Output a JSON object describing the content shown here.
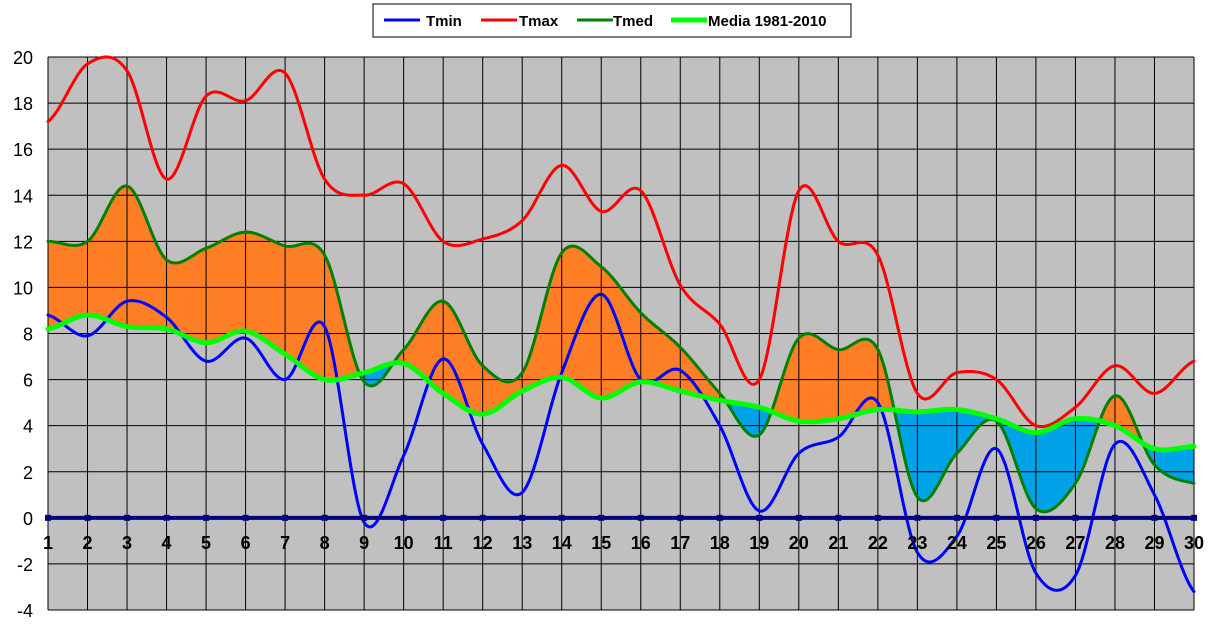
{
  "chart_data": {
    "type": "line",
    "title": "",
    "xlabel": "",
    "ylabel": "",
    "x": [
      1,
      2,
      3,
      4,
      5,
      6,
      7,
      8,
      9,
      10,
      11,
      12,
      13,
      14,
      15,
      16,
      17,
      18,
      19,
      20,
      21,
      22,
      23,
      24,
      25,
      26,
      27,
      28,
      29,
      30
    ],
    "xlim": [
      1,
      30
    ],
    "ylim": [
      -4,
      20
    ],
    "y_ticks": [
      -4,
      -2,
      0,
      2,
      4,
      6,
      8,
      10,
      12,
      14,
      16,
      18,
      20
    ],
    "grid": true,
    "legend_position": "top-center",
    "fill_between": {
      "upper_series": "Tmed",
      "lower_series": "Media 1981-2010",
      "above_color": "#FF7F27",
      "below_color": "#00A2E8"
    },
    "series": [
      {
        "name": "Tmin",
        "color": "#0000FF",
        "values": [
          8.8,
          7.9,
          9.4,
          8.7,
          6.8,
          7.8,
          6.0,
          8.3,
          -0.2,
          2.7,
          6.9,
          3.2,
          1.1,
          6.3,
          9.7,
          6.0,
          6.4,
          4.0,
          0.3,
          2.8,
          3.5,
          5.0,
          -1.5,
          -0.8,
          3.0,
          -2.4,
          -2.5,
          3.2,
          1.0,
          -3.2
        ]
      },
      {
        "name": "Tmax",
        "color": "#FF0000",
        "values": [
          17.2,
          19.7,
          19.4,
          14.7,
          18.3,
          18.1,
          19.3,
          14.7,
          14.0,
          14.5,
          12.0,
          12.1,
          12.9,
          15.3,
          13.3,
          14.2,
          10.1,
          8.4,
          6.0,
          14.2,
          12.0,
          11.4,
          5.4,
          6.3,
          6.0,
          4.0,
          4.8,
          6.6,
          5.4,
          6.8
        ]
      },
      {
        "name": "Tmed",
        "color": "#008000",
        "values": [
          12.0,
          12.0,
          14.4,
          11.2,
          11.7,
          12.4,
          11.8,
          11.4,
          5.9,
          7.3,
          9.4,
          6.6,
          6.3,
          11.5,
          10.9,
          8.9,
          7.4,
          5.4,
          3.6,
          7.8,
          7.3,
          7.3,
          0.9,
          2.8,
          4.2,
          0.4,
          1.5,
          5.3,
          2.3,
          1.5
        ]
      },
      {
        "name": "Media 1981-2010",
        "color": "#00FF00",
        "values": [
          8.2,
          8.8,
          8.3,
          8.2,
          7.6,
          8.1,
          7.1,
          6.0,
          6.3,
          6.7,
          5.4,
          4.5,
          5.5,
          6.1,
          5.2,
          5.9,
          5.5,
          5.1,
          4.8,
          4.2,
          4.3,
          4.7,
          4.6,
          4.7,
          4.3,
          3.7,
          4.3,
          4.0,
          3.0,
          3.1
        ]
      }
    ],
    "background_color": "#C0C0C0",
    "zero_line_color": "#000080"
  }
}
